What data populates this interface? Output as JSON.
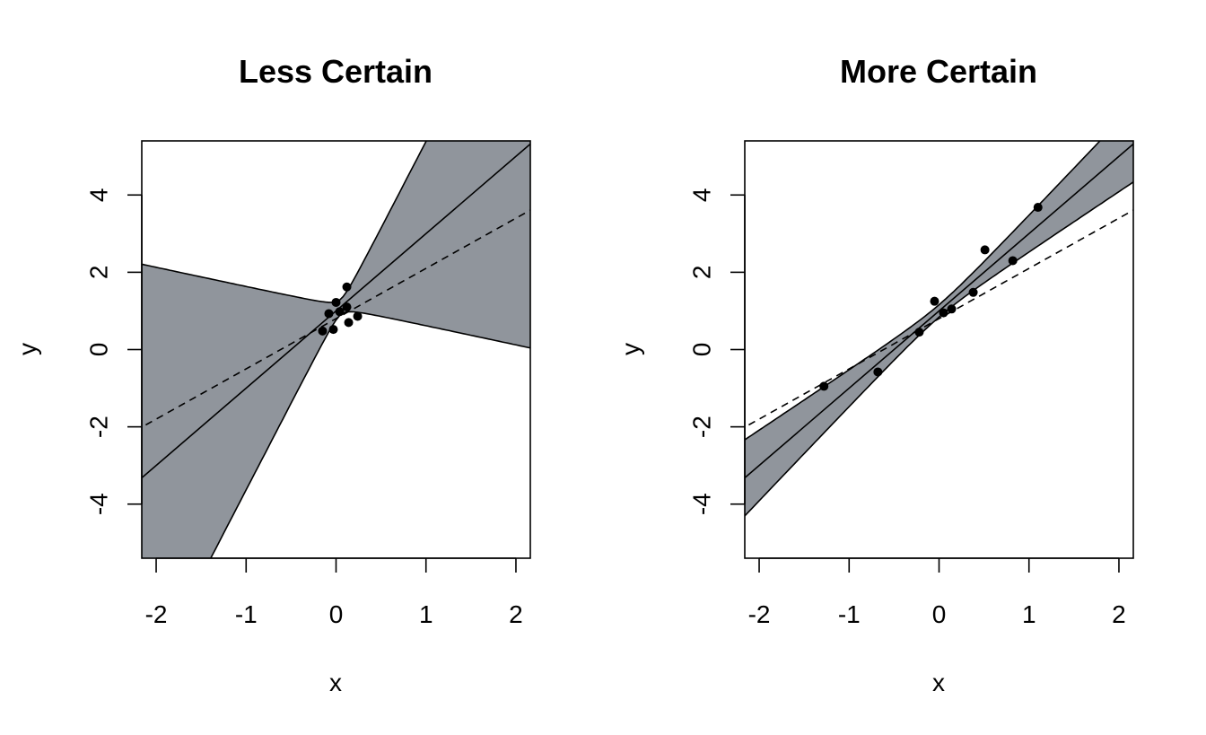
{
  "chart_data": [
    {
      "type": "scatter",
      "title": "Less Certain",
      "xlabel": "x",
      "ylabel": "y",
      "xlim": [
        -2.16,
        2.16
      ],
      "ylim": [
        -5.4,
        5.4
      ],
      "x_ticks": [
        -2,
        -1,
        0,
        1,
        2
      ],
      "y_ticks": [
        -4,
        -2,
        0,
        2,
        4
      ],
      "x_tick_labels": [
        "-2",
        "-1",
        "0",
        "1",
        "2"
      ],
      "y_tick_labels": [
        "-4",
        "-2",
        "0",
        "2",
        "4"
      ],
      "points": [
        {
          "x": -0.08,
          "y": 0.93
        },
        {
          "x": 0.0,
          "y": 1.22
        },
        {
          "x": 0.04,
          "y": 0.98
        },
        {
          "x": 0.12,
          "y": 1.1
        },
        {
          "x": 0.12,
          "y": 1.62
        },
        {
          "x": 0.24,
          "y": 0.86
        },
        {
          "x": -0.15,
          "y": 0.48
        },
        {
          "x": -0.03,
          "y": 0.52
        },
        {
          "x": 0.14,
          "y": 0.7
        }
      ],
      "fit_line": {
        "intercept": 1.0,
        "slope": 2.0
      },
      "true_line": {
        "intercept": 0.8,
        "slope": 1.3
      },
      "band": {
        "center_x": 0.05,
        "half_width": 0.2,
        "width_per_unit": 2.5
      },
      "colors": {
        "band": "#90959c",
        "lines": "#000000",
        "points": "#000000"
      }
    },
    {
      "type": "scatter",
      "title": "More Certain",
      "xlabel": "x",
      "ylabel": "y",
      "xlim": [
        -2.16,
        2.16
      ],
      "ylim": [
        -5.4,
        5.4
      ],
      "x_ticks": [
        -2,
        -1,
        0,
        1,
        2
      ],
      "y_ticks": [
        -4,
        -2,
        0,
        2,
        4
      ],
      "x_tick_labels": [
        "-2",
        "-1",
        "0",
        "1",
        "2"
      ],
      "y_tick_labels": [
        "-4",
        "-2",
        "0",
        "2",
        "4"
      ],
      "points": [
        {
          "x": -1.28,
          "y": -0.95
        },
        {
          "x": -0.68,
          "y": -0.58
        },
        {
          "x": -0.22,
          "y": 0.45
        },
        {
          "x": -0.05,
          "y": 1.25
        },
        {
          "x": 0.05,
          "y": 0.95
        },
        {
          "x": 0.14,
          "y": 1.05
        },
        {
          "x": 0.38,
          "y": 1.48
        },
        {
          "x": 0.51,
          "y": 2.58
        },
        {
          "x": 0.82,
          "y": 2.3
        },
        {
          "x": 1.1,
          "y": 3.68
        }
      ],
      "fit_line": {
        "intercept": 1.0,
        "slope": 2.0
      },
      "true_line": {
        "intercept": 0.8,
        "slope": 1.3
      },
      "band": {
        "center_x": 0.0,
        "half_width": 0.16,
        "width_per_unit": 0.45
      },
      "colors": {
        "band": "#90959c",
        "lines": "#000000",
        "points": "#000000"
      }
    }
  ]
}
